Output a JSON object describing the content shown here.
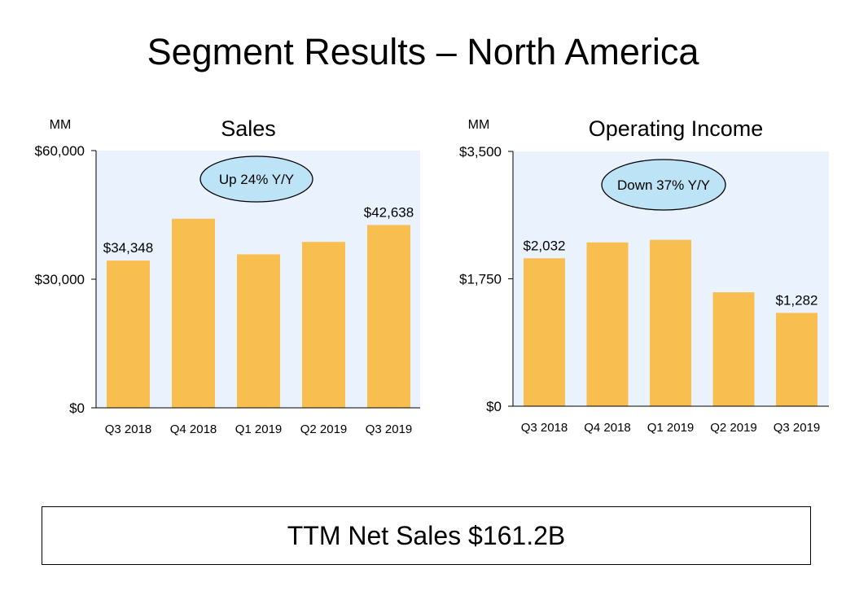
{
  "page": {
    "title": "Segment Results – North America",
    "summary": "TTM Net Sales $161.2B"
  },
  "chart_data": [
    {
      "type": "bar",
      "title": "Sales",
      "unit_label": "MM",
      "categories": [
        "Q3 2018",
        "Q4 2018",
        "Q1 2019",
        "Q2 2019",
        "Q3 2019"
      ],
      "values": [
        34348,
        44100,
        35800,
        38700,
        42638
      ],
      "data_labels": [
        "$34,348",
        "",
        "",
        "",
        "$42,638"
      ],
      "ylim": [
        0,
        60000
      ],
      "yticks": [
        0,
        30000,
        60000
      ],
      "ytick_labels": [
        "$0",
        "$30,000",
        "$60,000"
      ],
      "annotation": "Up 24% Y/Y",
      "grid": false,
      "colors": {
        "bar": "#F9BE50",
        "plot_bg": "#EAF3FD",
        "annotation_fill": "#BDE3F7"
      }
    },
    {
      "type": "bar",
      "title": "Operating Income",
      "unit_label": "MM",
      "categories": [
        "Q3 2018",
        "Q4 2018",
        "Q1 2019",
        "Q2 2019",
        "Q3 2019"
      ],
      "values": [
        2032,
        2250,
        2285,
        1565,
        1282
      ],
      "data_labels": [
        "$2,032",
        "",
        "",
        "",
        "$1,282"
      ],
      "ylim": [
        0,
        3500
      ],
      "yticks": [
        0,
        1750,
        3500
      ],
      "ytick_labels": [
        "$0",
        "$1,750",
        "$3,500"
      ],
      "annotation": "Down 37% Y/Y",
      "grid": false,
      "colors": {
        "bar": "#F9BE50",
        "plot_bg": "#EAF3FD",
        "annotation_fill": "#BDE3F7"
      }
    }
  ]
}
